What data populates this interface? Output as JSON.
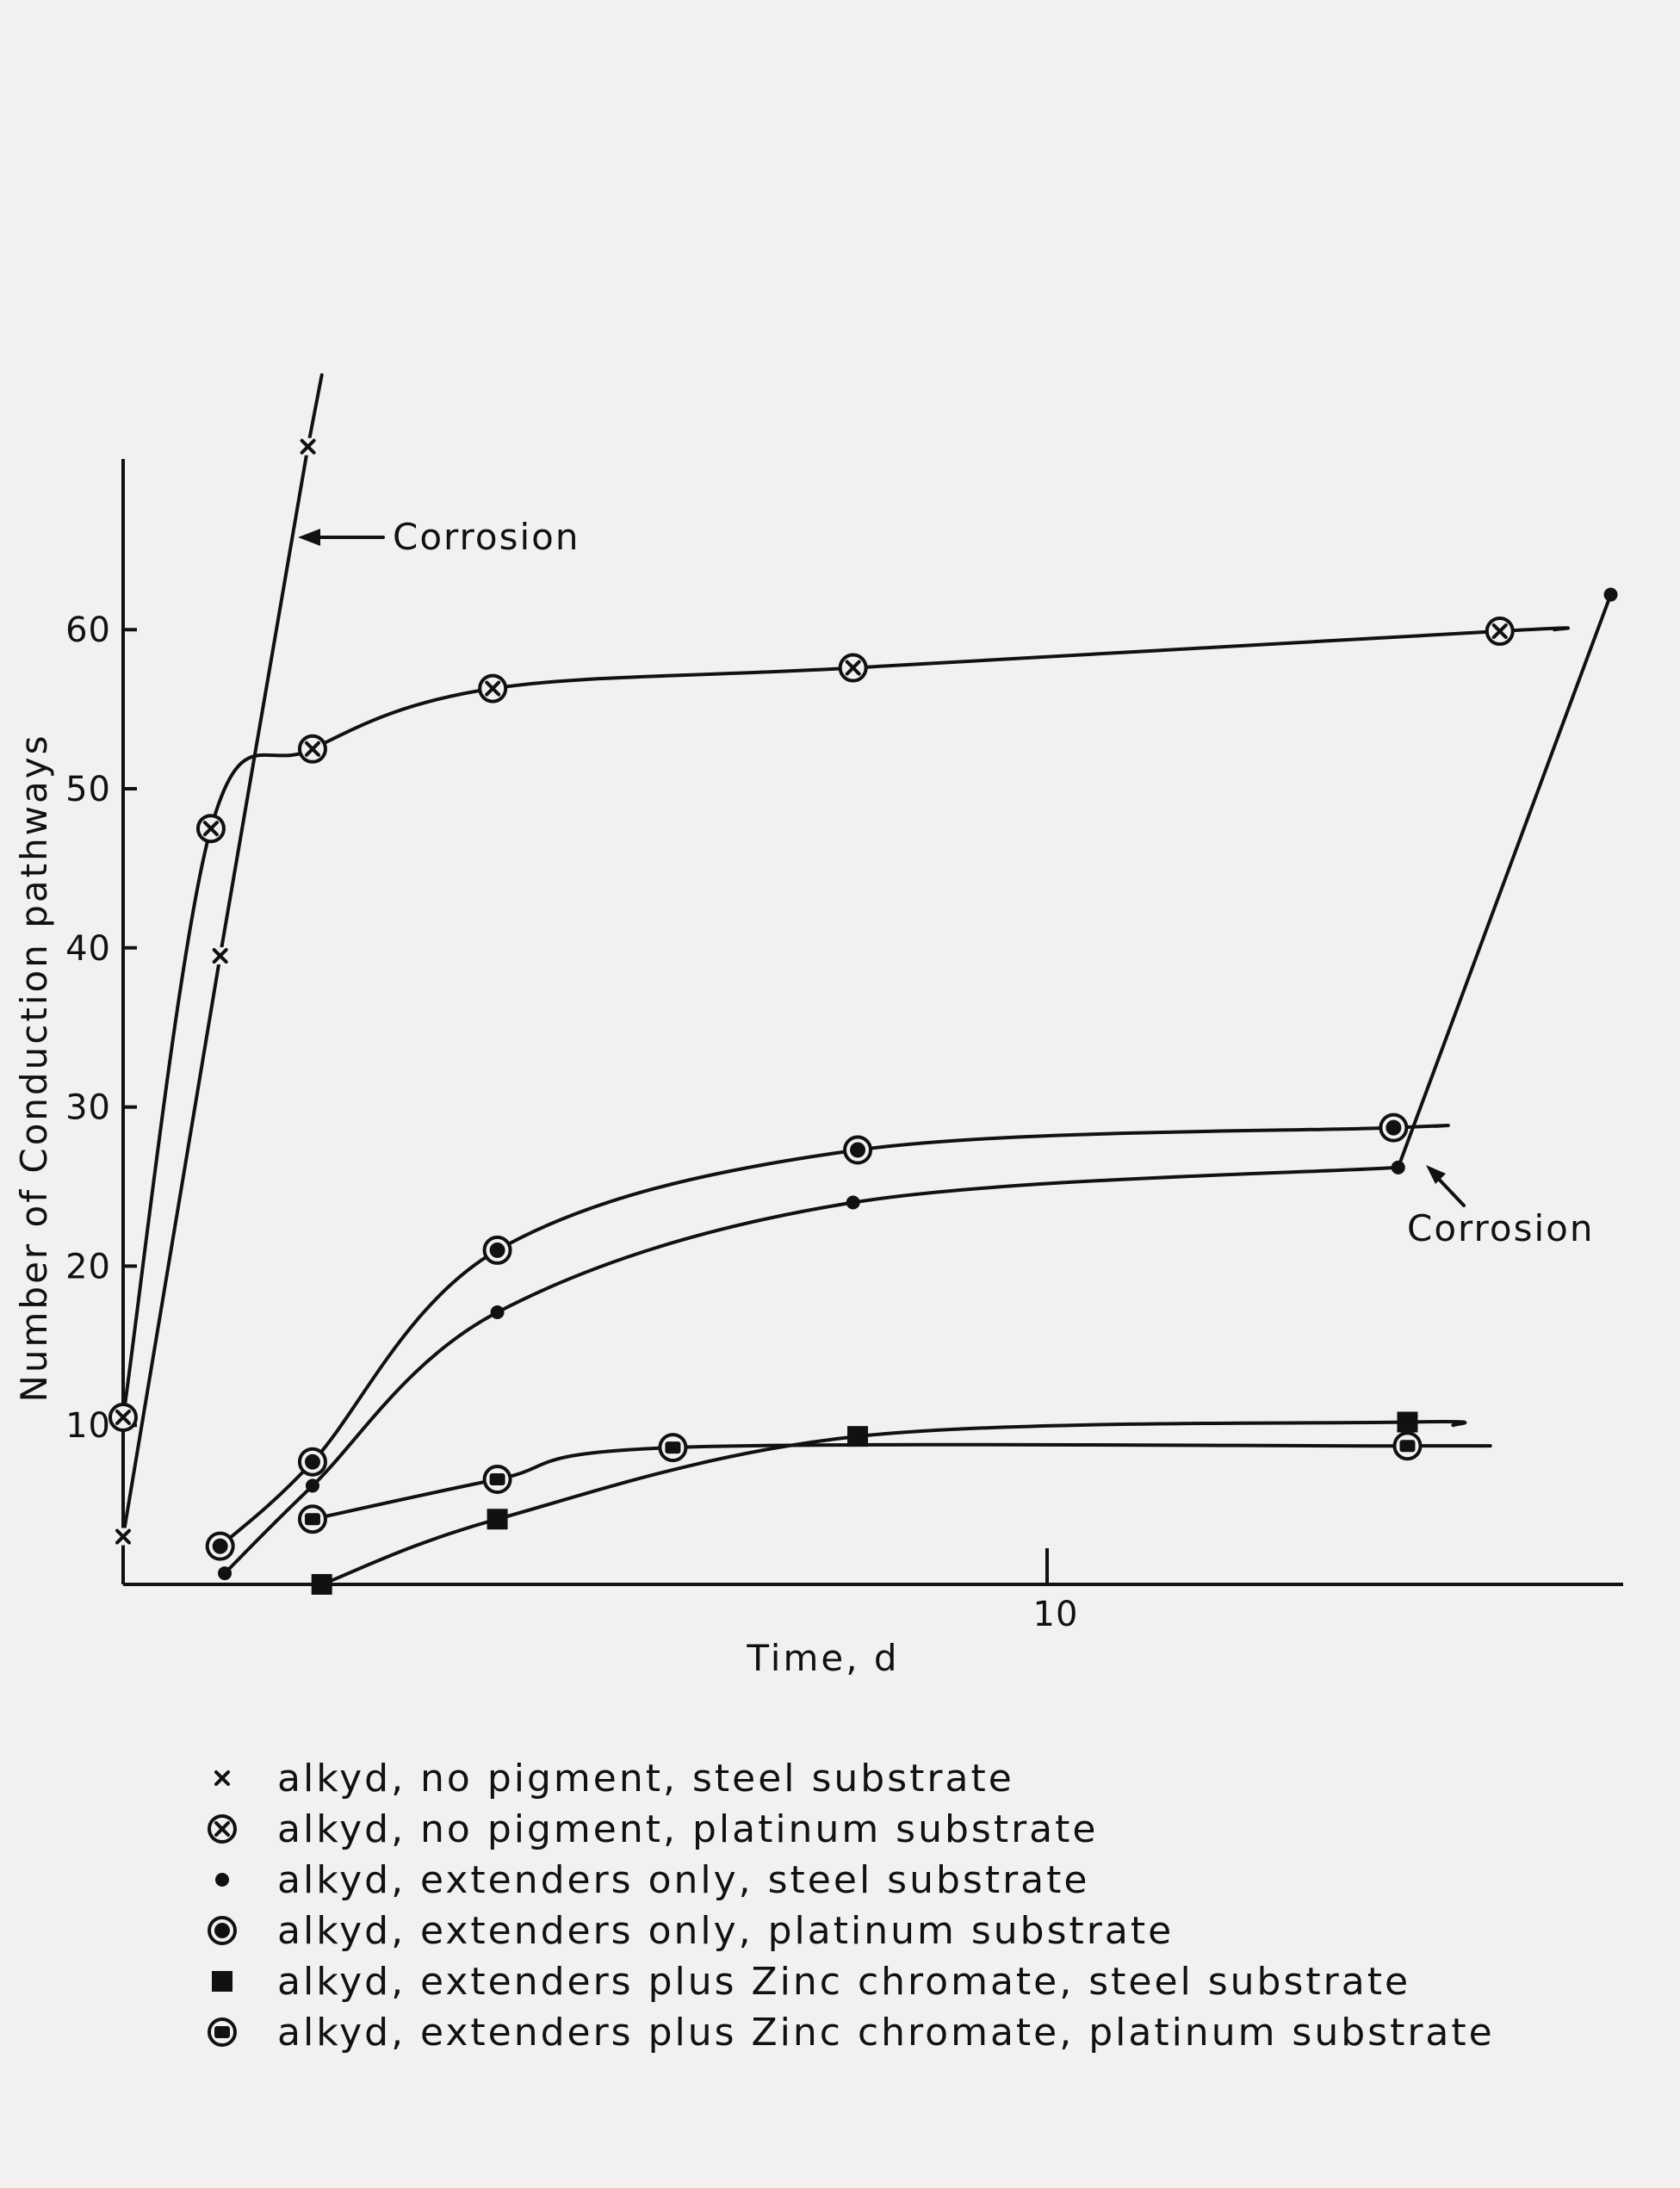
{
  "chart_data": {
    "type": "line",
    "title": "",
    "xlabel": "Time, d",
    "ylabel": "Number of Conduction pathways",
    "xlim": [
      0,
      16
    ],
    "ylim": [
      0,
      70
    ],
    "x_ticks": [
      10
    ],
    "y_ticks": [
      10,
      20,
      30,
      40,
      50,
      60
    ],
    "grid": false,
    "legend_position": "bottom",
    "series": [
      {
        "name": "alkyd, no pigment, steel substrate",
        "marker": "x",
        "points": [
          [
            0,
            3
          ],
          [
            1.05,
            39.5
          ],
          [
            2.0,
            71.5
          ]
        ],
        "line_extension": [
          2.15,
          76
        ]
      },
      {
        "name": "alkyd, no pigment, platinum substrate",
        "marker": "circled-x",
        "points": [
          [
            0,
            10.5
          ],
          [
            0.95,
            47.5
          ],
          [
            2.05,
            52.5
          ],
          [
            4.0,
            56.3
          ],
          [
            7.9,
            57.6
          ],
          [
            14.9,
            59.9
          ]
        ],
        "line_extension": [
          15.5,
          60
        ]
      },
      {
        "name": "alkyd, extenders only, steel substrate",
        "marker": "dot",
        "points": [
          [
            1.1,
            0.7
          ],
          [
            2.05,
            6.2
          ],
          [
            4.05,
            17.1
          ],
          [
            7.9,
            24.0
          ],
          [
            13.8,
            26.2
          ]
        ],
        "corrosion_point": [
          16.1,
          62.2
        ]
      },
      {
        "name": "alkyd, extenders only, platinum substrate",
        "marker": "circled-dot",
        "points": [
          [
            1.05,
            2.4
          ],
          [
            2.05,
            7.7
          ],
          [
            4.05,
            21.0
          ],
          [
            7.95,
            27.3
          ],
          [
            13.75,
            28.7
          ]
        ],
        "line_extension": [
          14.2,
          28.8
        ]
      },
      {
        "name": "alkyd, extenders plus Zinc chromate, steel substrate",
        "marker": "square",
        "points": [
          [
            2.15,
            0
          ],
          [
            4.05,
            4.1
          ],
          [
            7.95,
            9.3
          ],
          [
            13.9,
            10.2
          ]
        ],
        "line_extension": [
          14.4,
          10.0
        ]
      },
      {
        "name": "alkyd, extenders plus Zinc chromate, platinum substrate",
        "marker": "circled-square",
        "points": [
          [
            2.05,
            4.1
          ],
          [
            4.05,
            6.6
          ],
          [
            5.95,
            8.6
          ],
          [
            13.9,
            8.7
          ]
        ],
        "line_extension": [
          14.7,
          8.7
        ]
      }
    ],
    "annotations": [
      {
        "text": "Corrosion",
        "series": 0
      },
      {
        "text": "Corrosion",
        "series": 2
      }
    ]
  }
}
